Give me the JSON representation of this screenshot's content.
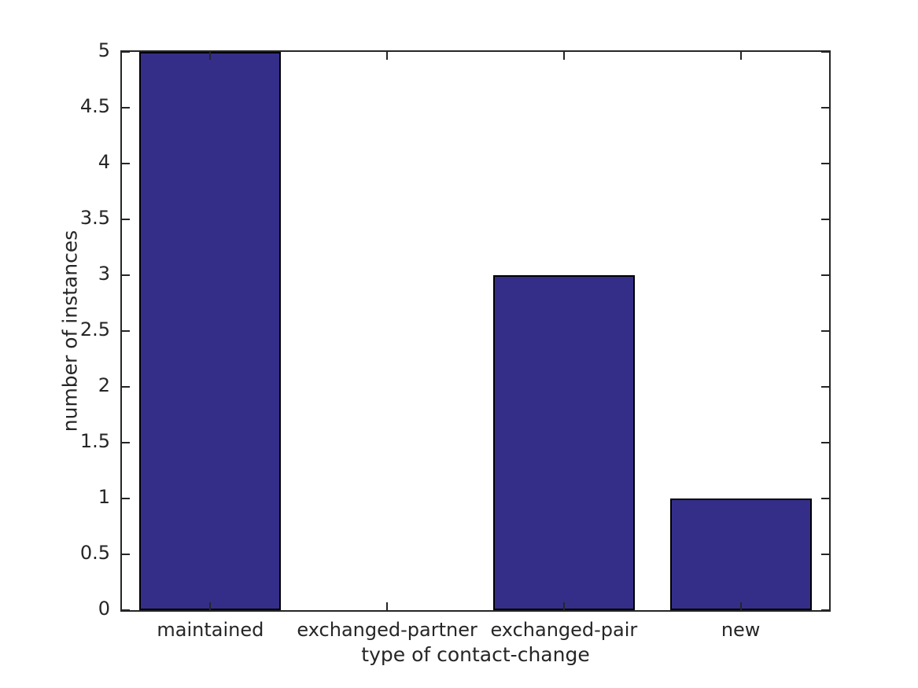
{
  "chart_data": {
    "type": "bar",
    "title": "",
    "categories": [
      "maintained",
      "exchanged-partner",
      "exchanged-pair",
      "new"
    ],
    "values": [
      5,
      0,
      3,
      1
    ],
    "xlabel": "type of contact-change",
    "ylabel": "number of instances",
    "ylim": [
      0,
      5
    ],
    "yticks": [
      0,
      0.5,
      1,
      1.5,
      2,
      2.5,
      3,
      3.5,
      4,
      4.5,
      5
    ],
    "ytick_labels": [
      "0",
      "0.5",
      "1",
      "1.5",
      "2",
      "2.5",
      "3",
      "3.5",
      "4",
      "4.5",
      "5"
    ],
    "bar_width_fraction": 0.8,
    "grid": false,
    "legend": null,
    "tick_style": "inward-all-sides",
    "colors": {
      "bar_fill": "#342e89",
      "bar_edge": "#000000",
      "axis": "#262626",
      "text": "#262626",
      "background": "#ffffff"
    }
  }
}
